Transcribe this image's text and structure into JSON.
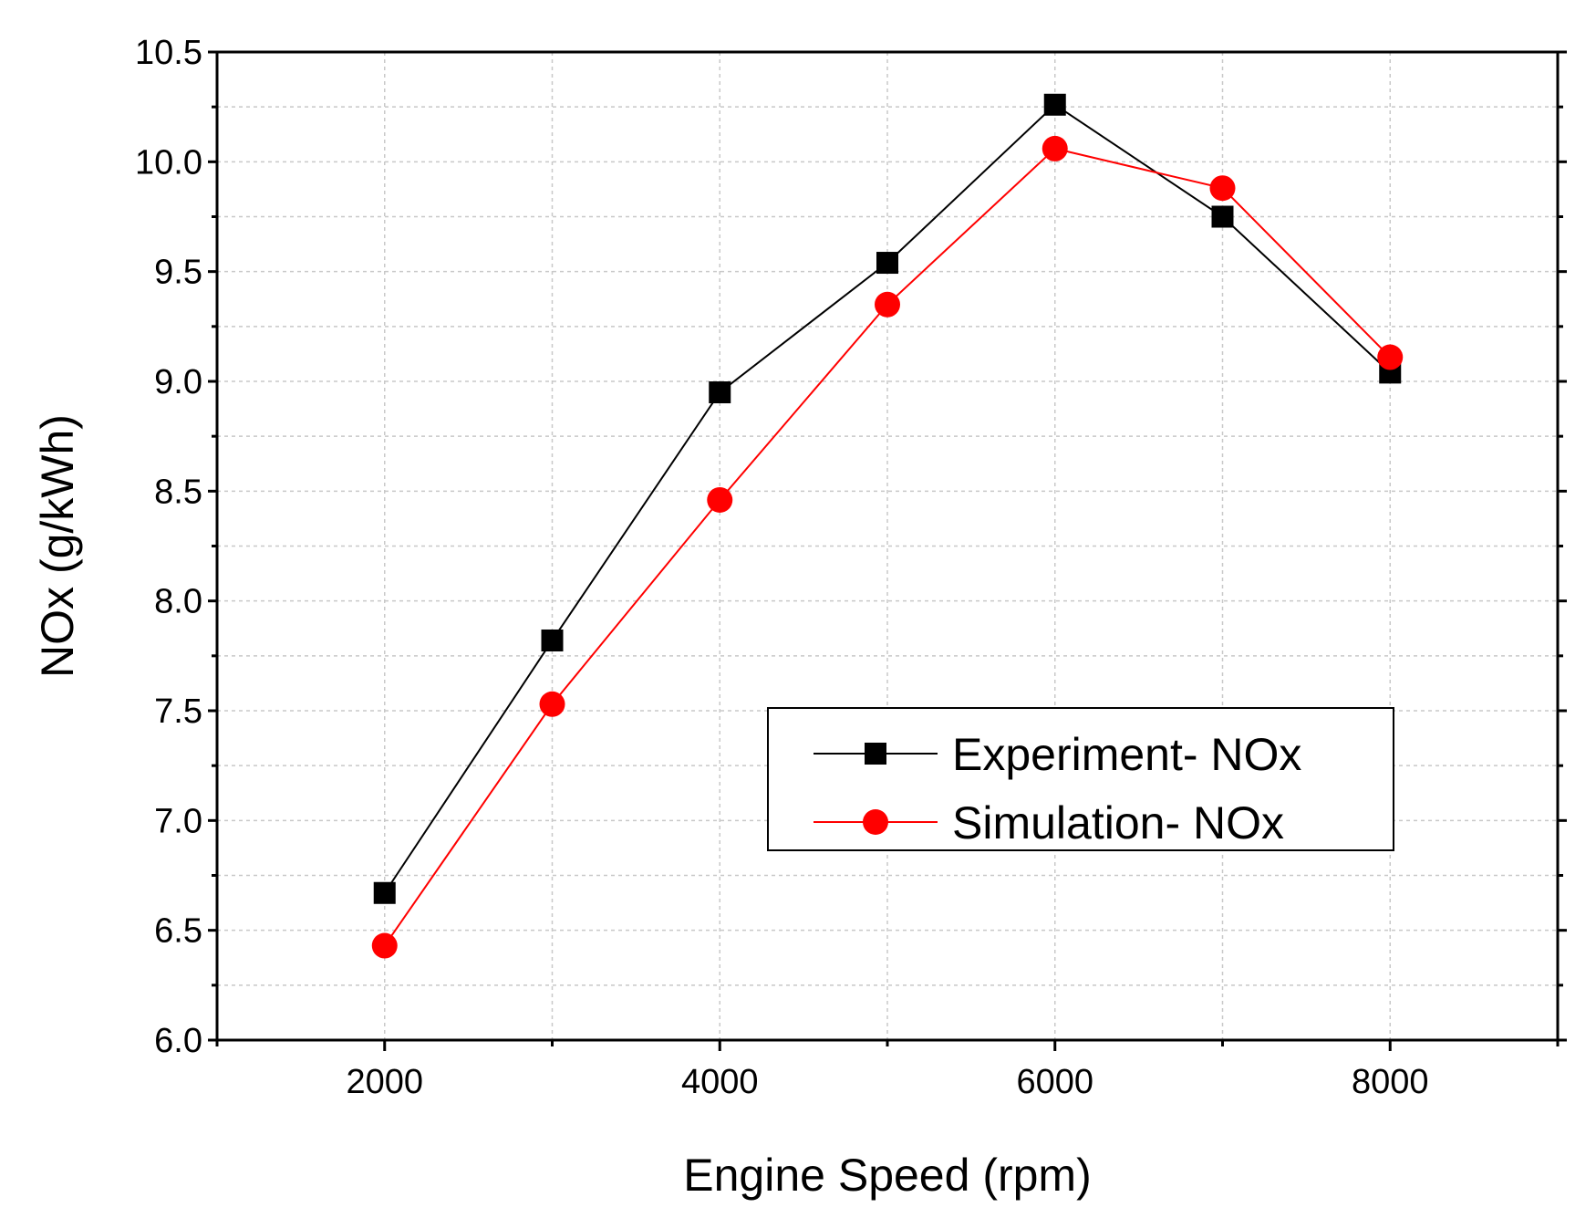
{
  "chart_data": {
    "type": "line",
    "title": "",
    "xlabel": "Engine Speed (rpm)",
    "ylabel": "NOx (g/kWh)",
    "xlim": [
      1000,
      9000
    ],
    "ylim": [
      6.0,
      10.5
    ],
    "x_ticks": [
      2000,
      4000,
      6000,
      8000
    ],
    "x_tick_labels": [
      "2000",
      "4000",
      "6000",
      "8000"
    ],
    "x_minor_ticks": [
      1000,
      3000,
      5000,
      7000,
      9000
    ],
    "y_ticks": [
      6.0,
      6.5,
      7.0,
      7.5,
      8.0,
      8.5,
      9.0,
      9.5,
      10.0,
      10.5
    ],
    "y_tick_labels": [
      "6.0",
      "6.5",
      "7.0",
      "7.5",
      "8.0",
      "8.5",
      "9.0",
      "9.5",
      "10.0",
      "10.5"
    ],
    "grid": true,
    "legend_position": "lower-right",
    "x": [
      2000,
      3000,
      4000,
      5000,
      6000,
      7000,
      8000
    ],
    "series": [
      {
        "name": "Experiment- NOx",
        "marker": "square",
        "color": "#000000",
        "values": [
          6.67,
          7.82,
          8.95,
          9.54,
          10.26,
          9.75,
          9.04
        ]
      },
      {
        "name": "Simulation- NOx",
        "marker": "circle",
        "color": "#ff0000",
        "values": [
          6.43,
          7.53,
          8.46,
          9.35,
          10.06,
          9.88,
          9.11
        ]
      }
    ]
  }
}
